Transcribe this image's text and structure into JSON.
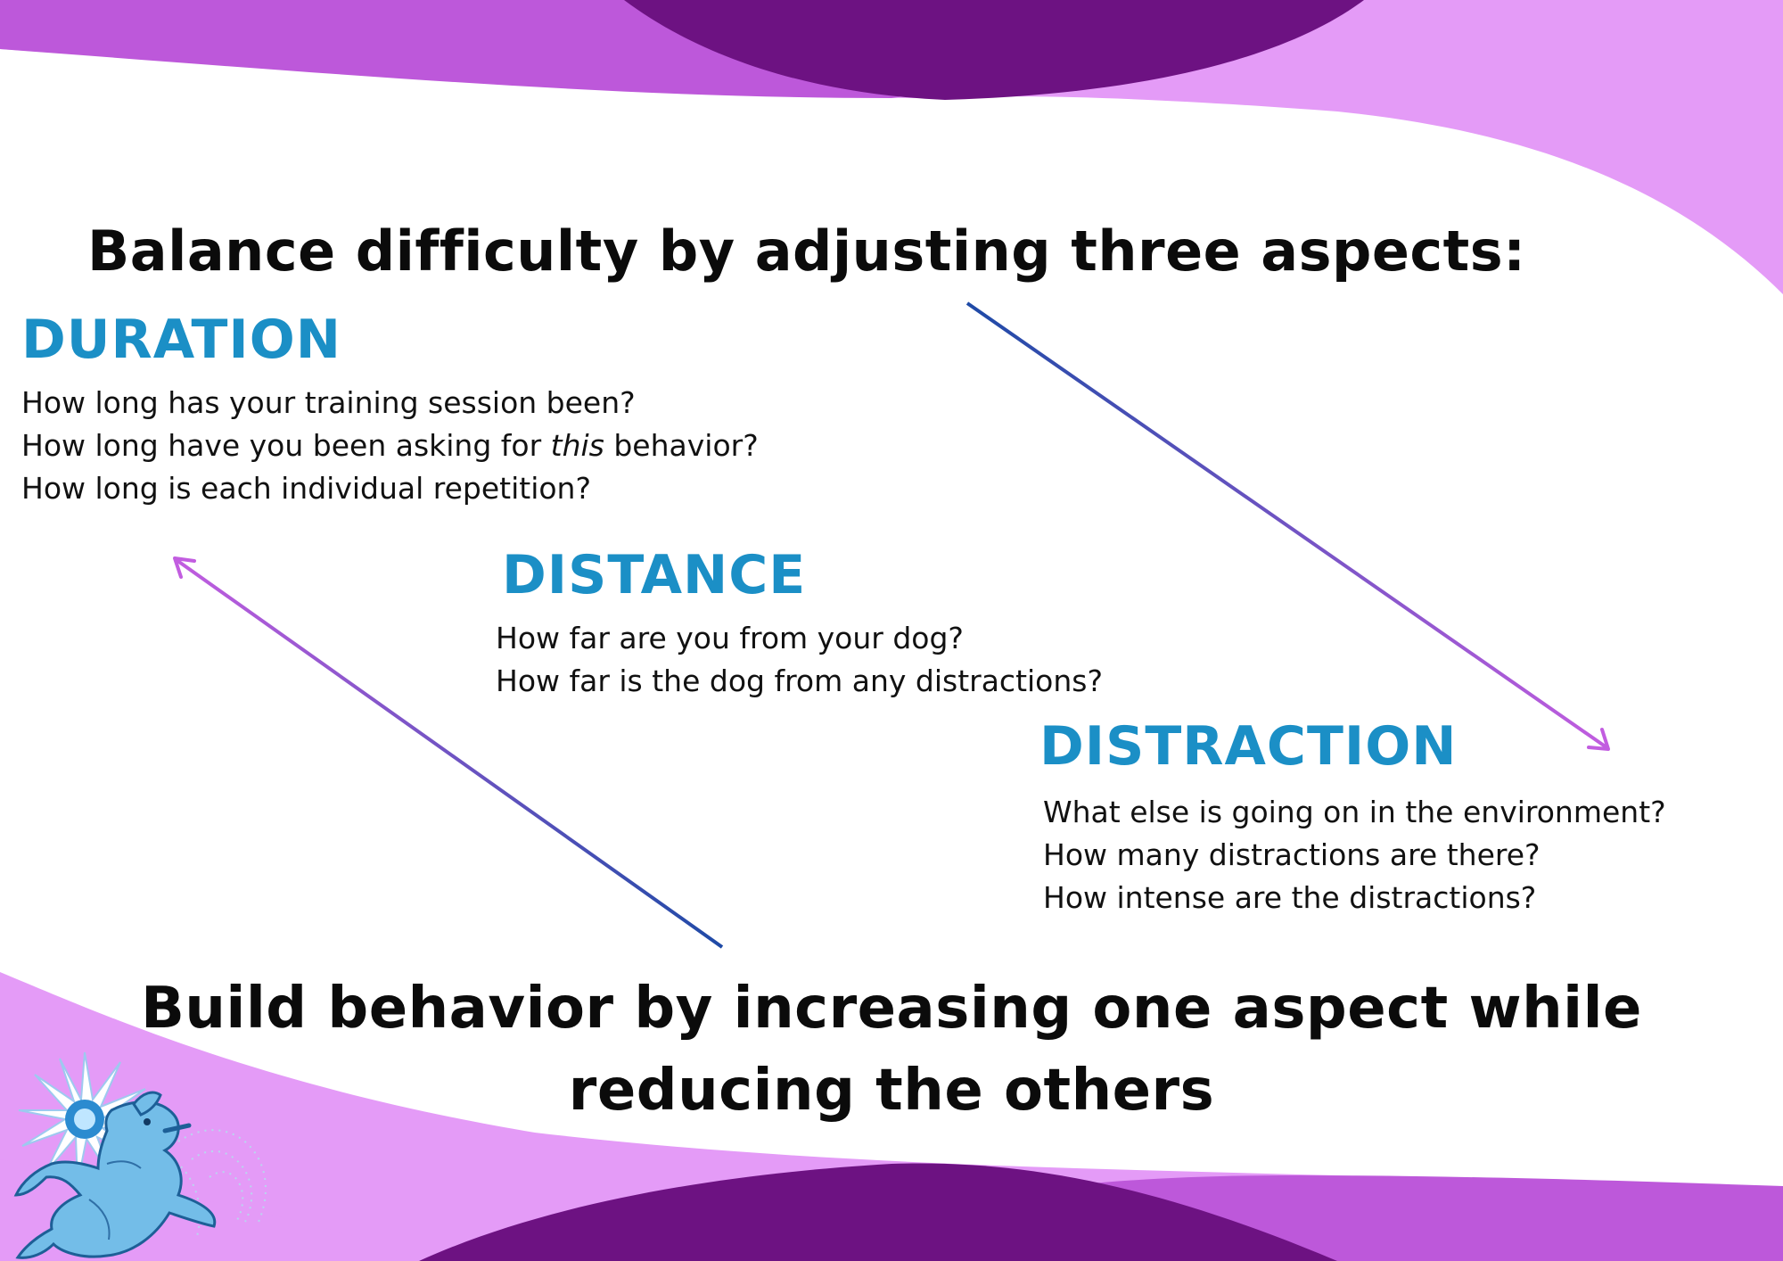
{
  "colors": {
    "title": "#1b8fc6",
    "light_purple": "#e49bf7",
    "mid_purple": "#bd58da",
    "dark_purple": "#6d1282",
    "arrow_dark": "#1e4aa6",
    "arrow_light": "#c25de0"
  },
  "headline": "Balance difficulty by adjusting three aspects:",
  "sections": {
    "duration": {
      "title": "DURATION",
      "q1": "How long has your training session been?",
      "q2_before": "How long have you been asking for ",
      "q2_em": "this",
      "q2_after": " behavior?",
      "q3": "How long is each individual repetition?"
    },
    "distance": {
      "title": "DISTANCE",
      "q1": "How far are you from your dog?",
      "q2": "How far is the dog from any distractions?"
    },
    "distraction": {
      "title": "DISTRACTION",
      "q1": "What else is going on in the environment?",
      "q2": "How many distractions are there?",
      "q3": "How intense are the distractions?"
    }
  },
  "footer": {
    "line1": "Build behavior by increasing one aspect while",
    "line2": "reducing the others"
  },
  "icons": {
    "logo": "dog-logo-icon",
    "arrow_down": "arrow-down-right-icon",
    "arrow_up": "arrow-up-left-icon"
  }
}
